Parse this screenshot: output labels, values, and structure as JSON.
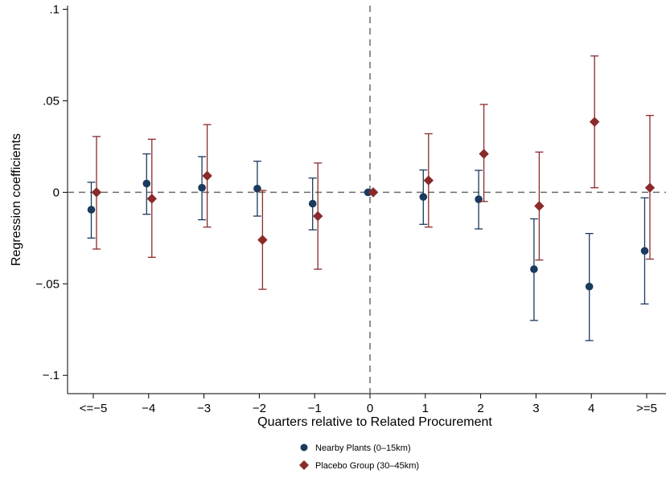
{
  "chart_data": {
    "type": "scatter",
    "subtype": "coefficient-plot-with-confidence-intervals",
    "title": "",
    "xlabel": "Quarters relative to Related Procurement",
    "ylabel": "Regression coefficients",
    "categories": [
      "<=−5",
      "−4",
      "−3",
      "−2",
      "−1",
      "0",
      "1",
      "2",
      "3",
      "4",
      ">=5"
    ],
    "ylim": [
      -0.11,
      0.102
    ],
    "yticks": [
      -0.1,
      -0.05,
      0,
      0.05,
      0.1
    ],
    "ytick_labels": [
      "−.1",
      "−.05",
      "0",
      ".05",
      ".1"
    ],
    "reference_lines": {
      "y": 0,
      "x_category": "0",
      "style": "dashed"
    },
    "grid": false,
    "legend_position": "bottom",
    "series": [
      {
        "name": "Nearby Plants (0–15km)",
        "marker": "circle",
        "color": "#1a3a5e",
        "values": [
          -0.0095,
          0.0048,
          0.0025,
          0.002,
          -0.0062,
          0.0,
          -0.0025,
          -0.0038,
          -0.042,
          -0.0515,
          -0.032
        ],
        "ci_lower": [
          -0.025,
          -0.012,
          -0.015,
          -0.013,
          -0.0205,
          null,
          -0.0175,
          -0.02,
          -0.07,
          -0.081,
          -0.061
        ],
        "ci_upper": [
          0.0055,
          0.021,
          0.0195,
          0.017,
          0.0078,
          null,
          0.0122,
          0.012,
          -0.0145,
          -0.0225,
          -0.003
        ]
      },
      {
        "name": "Placebo Group (30–45km)",
        "marker": "diamond",
        "color": "#8b2a2a",
        "values": [
          0.0,
          -0.0035,
          0.009,
          -0.026,
          -0.013,
          0.0,
          0.0065,
          0.021,
          -0.0075,
          0.0385,
          0.0025
        ],
        "ci_lower": [
          -0.031,
          -0.0355,
          -0.019,
          -0.053,
          -0.042,
          null,
          -0.019,
          -0.005,
          -0.037,
          0.0025,
          -0.0365
        ],
        "ci_upper": [
          0.0305,
          0.029,
          0.037,
          0.001,
          0.016,
          null,
          0.032,
          0.048,
          0.022,
          0.0745,
          0.042
        ]
      }
    ]
  }
}
